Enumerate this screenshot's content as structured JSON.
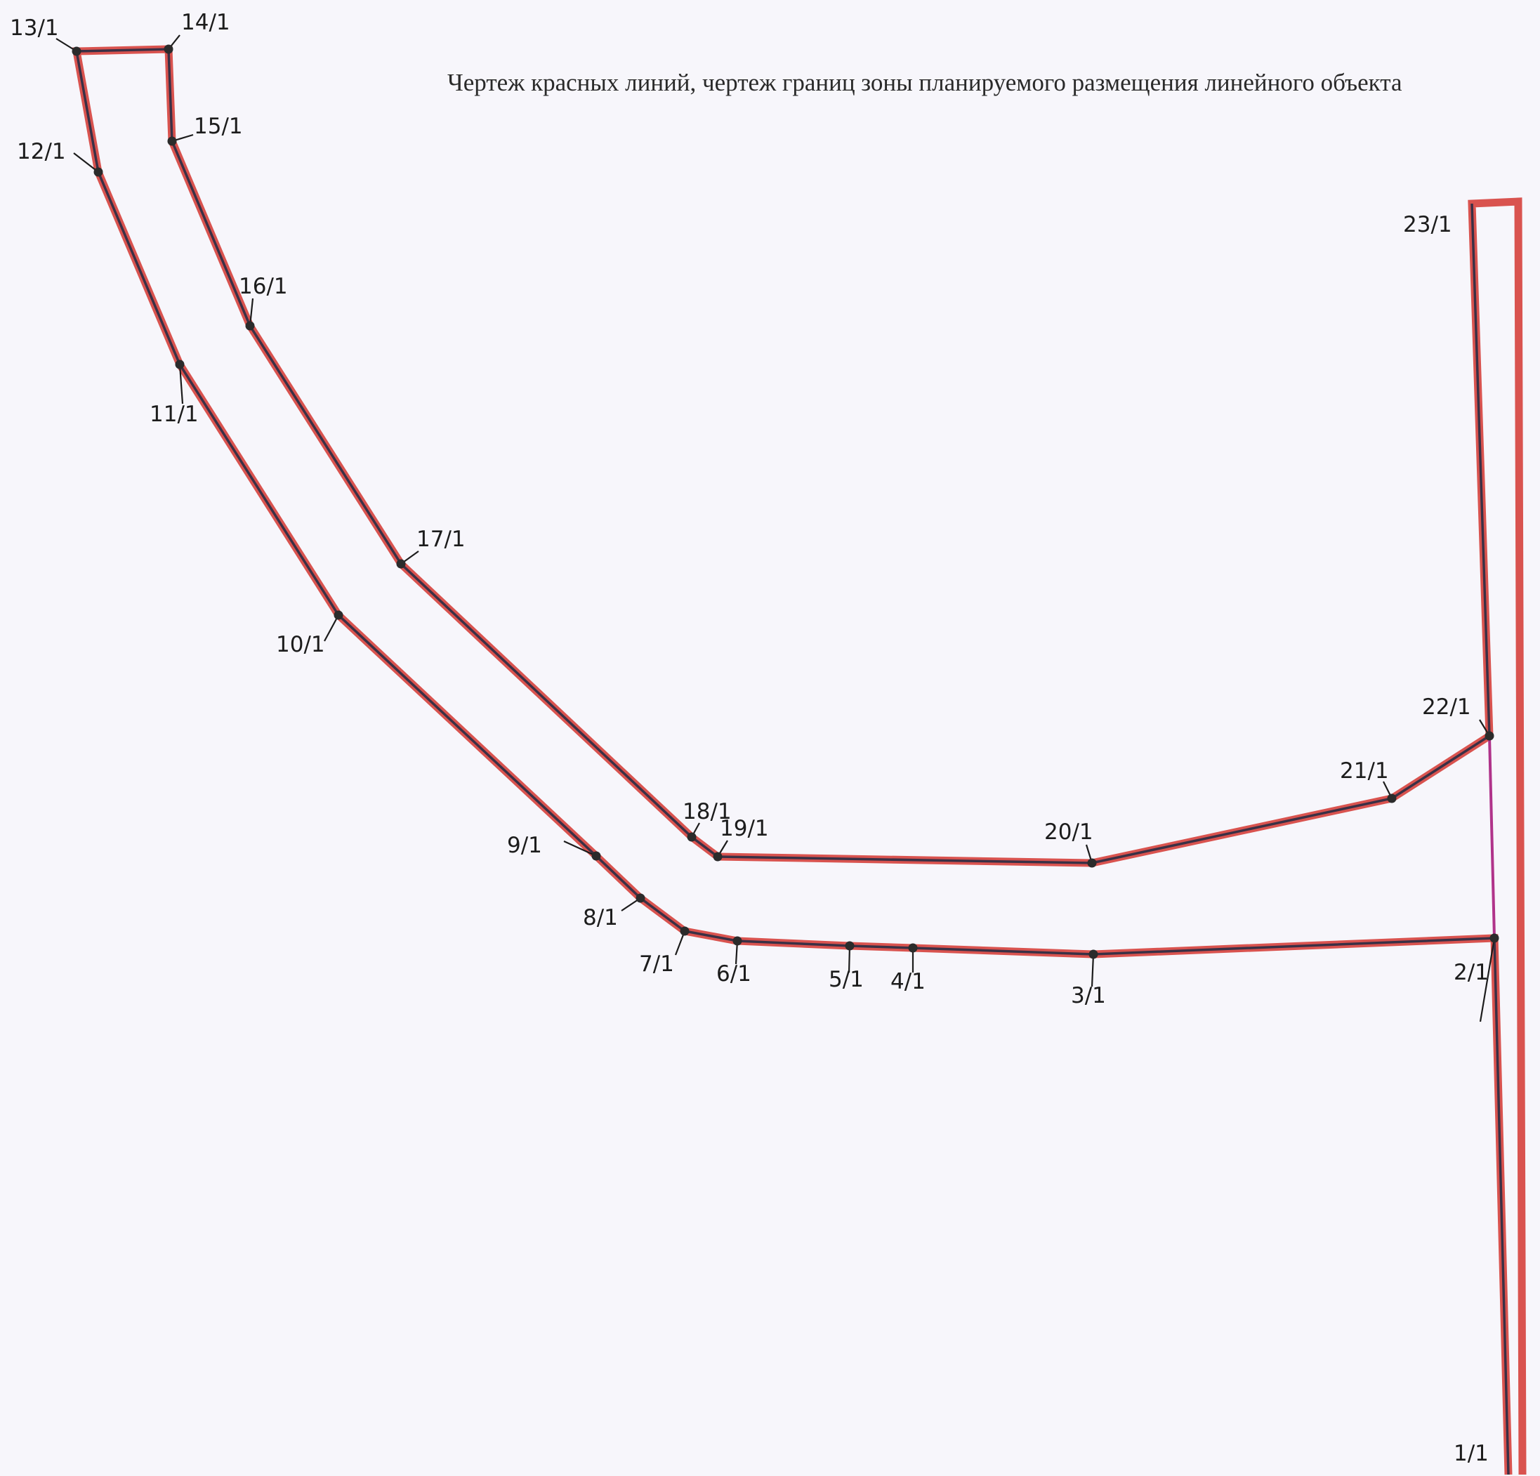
{
  "title": "Чертеж красных линий, чертеж границ зоны планируемого размещения линейного объекта",
  "colors": {
    "background": "#f7f6fb",
    "red_line": "#d9534f",
    "boundary_line": "#3a3045",
    "point": "#2b2b2b",
    "junction_line": "#b0338a"
  },
  "points": [
    {
      "id": "1",
      "label": "1/1"
    },
    {
      "id": "2",
      "label": "2/1"
    },
    {
      "id": "3",
      "label": "3/1"
    },
    {
      "id": "4",
      "label": "4/1"
    },
    {
      "id": "5",
      "label": "5/1"
    },
    {
      "id": "6",
      "label": "6/1"
    },
    {
      "id": "7",
      "label": "7/1"
    },
    {
      "id": "8",
      "label": "8/1"
    },
    {
      "id": "9",
      "label": "9/1"
    },
    {
      "id": "10",
      "label": "10/1"
    },
    {
      "id": "11",
      "label": "11/1"
    },
    {
      "id": "12",
      "label": "12/1"
    },
    {
      "id": "13",
      "label": "13/1"
    },
    {
      "id": "14",
      "label": "14/1"
    },
    {
      "id": "15",
      "label": "15/1"
    },
    {
      "id": "16",
      "label": "16/1"
    },
    {
      "id": "17",
      "label": "17/1"
    },
    {
      "id": "18",
      "label": "18/1"
    },
    {
      "id": "19",
      "label": "19/1"
    },
    {
      "id": "20",
      "label": "20/1"
    },
    {
      "id": "21",
      "label": "21/1"
    },
    {
      "id": "22",
      "label": "22/1"
    },
    {
      "id": "23",
      "label": "23/1"
    }
  ]
}
